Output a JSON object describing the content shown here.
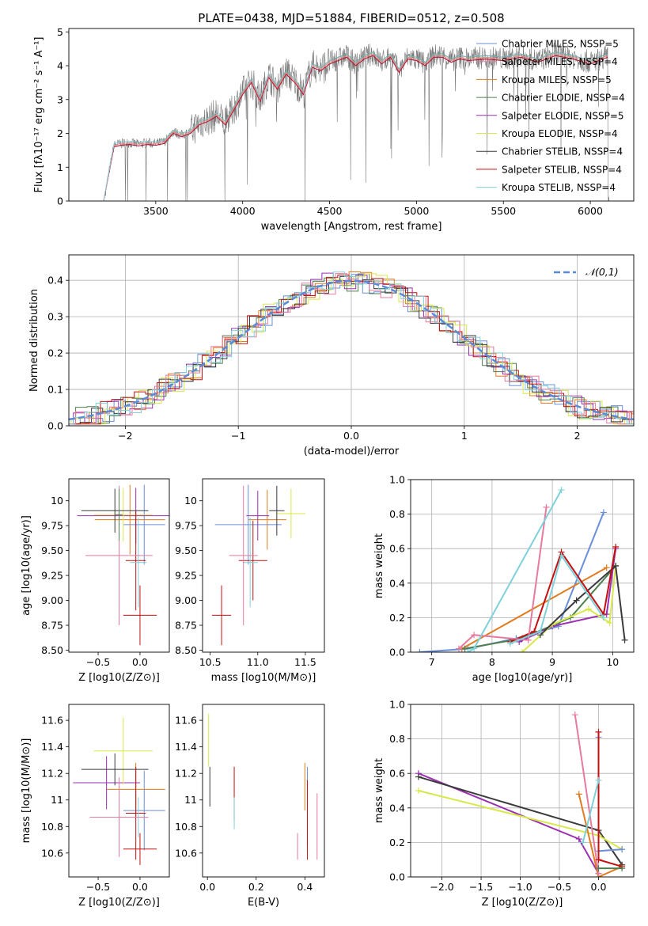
{
  "figure_title": "PLATE=0438, MJD=51884, FIBERID=0512, z=0.508",
  "series_colors": [
    "#6a8fd8",
    "#e07b1f",
    "#4f7f4f",
    "#9b30b0",
    "#d8e84a",
    "#3a3a3a",
    "#c41010",
    "#e8799f",
    "#7fd1d9"
  ],
  "chart_data": [
    {
      "id": "spectrum",
      "type": "line",
      "title": "PLATE=0438, MJD=51884, FIBERID=0512, z=0.508",
      "xlabel": "wavelength [Angstrom, rest frame]",
      "ylabel": "Flux [fλ10⁻¹⁷ erg cm⁻² s⁻¹ A⁻¹]",
      "xlim": [
        3000,
        6250
      ],
      "ylim": [
        0,
        5.1
      ],
      "xticks": [
        3500,
        4000,
        4500,
        5000,
        5500,
        6000
      ],
      "yticks": [
        0,
        1,
        2,
        3,
        4,
        5
      ],
      "grid": false,
      "legend_position": "upper right",
      "legend": [
        "Chabrier MILES, NSSP=5",
        "Salpeter MILES, NSSP=4",
        "Kroupa MILES, NSSP=5",
        "Chabrier ELODIE, NSSP=4",
        "Salpeter ELODIE, NSSP=5",
        "Kroupa ELODIE, NSSP=4",
        "Chabrier STELIB, NSSP=4",
        "Salpeter STELIB, NSSP=4",
        "Kroupa STELIB, NSSP=4"
      ],
      "legend_colors": [
        "#6a8fd8",
        "#e8799f",
        "#e07b1f",
        "#4f7f4f",
        "#9b30b0",
        "#d8e84a",
        "#3a3a3a",
        "#c41010",
        "#7fd1d9"
      ],
      "data_color": "#777777",
      "model_x": [
        3200,
        3260,
        3300,
        3350,
        3400,
        3450,
        3500,
        3550,
        3600,
        3650,
        3700,
        3750,
        3800,
        3850,
        3900,
        3950,
        4000,
        4050,
        4100,
        4150,
        4200,
        4250,
        4300,
        4350,
        4400,
        4450,
        4500,
        4550,
        4600,
        4650,
        4700,
        4750,
        4800,
        4850,
        4900,
        4950,
        5000,
        5050,
        5100,
        5150,
        5200,
        5250,
        5300,
        5400,
        5500,
        5600,
        5700,
        5800,
        5900,
        6000,
        6100
      ],
      "model_y": [
        0,
        1.65,
        1.7,
        1.72,
        1.68,
        1.72,
        1.7,
        1.75,
        2.05,
        1.95,
        2.05,
        2.3,
        2.4,
        2.55,
        2.3,
        2.75,
        3.2,
        3.55,
        3.0,
        3.7,
        3.35,
        3.8,
        3.55,
        3.2,
        4.0,
        3.9,
        4.1,
        4.2,
        4.3,
        4.05,
        4.25,
        4.35,
        4.1,
        4.3,
        3.85,
        4.25,
        4.2,
        4.05,
        4.3,
        4.3,
        4.15,
        4.25,
        4.2,
        4.25,
        4.2,
        4.3,
        4.15,
        4.35,
        4.25,
        4.1,
        4.3
      ]
    },
    {
      "id": "residuals",
      "type": "histogram",
      "xlabel": "(data-model)/error",
      "ylabel": "Normed distribution",
      "xlim": [
        -2.5,
        2.5
      ],
      "ylim": [
        0,
        0.47
      ],
      "xticks": [
        -2,
        -1,
        0,
        1,
        2
      ],
      "yticks": [
        0.0,
        0.1,
        0.2,
        0.3,
        0.4
      ],
      "grid": true,
      "legend": [
        "𝒩(0,1)"
      ],
      "legend_position": "upper right",
      "gauss_color": "#5b8bd8"
    },
    {
      "id": "age_vs_Z",
      "type": "errorbar",
      "xlabel": "Z [log10(Z/Z⊙)]",
      "ylabel": "age [log10(age/yr)]",
      "xlim": [
        -0.85,
        0.35
      ],
      "ylim": [
        8.48,
        10.22
      ],
      "xticks": [
        -0.5,
        0.0
      ],
      "yticks": [
        8.5,
        8.75,
        9.0,
        9.25,
        9.5,
        9.75,
        10.0
      ],
      "points": [
        {
          "c": 0,
          "x": 0.05,
          "y": 9.76,
          "xe": 0.25,
          "ye": 0.4
        },
        {
          "c": 1,
          "x": -0.12,
          "y": 9.81,
          "xe": 0.42,
          "ye": 0.35
        },
        {
          "c": 3,
          "x": -0.05,
          "y": 9.85,
          "xe": 0.7,
          "ye": 0.28
        },
        {
          "c": 4,
          "x": -0.2,
          "y": 9.86,
          "xe": 0.35,
          "ye": 0.27
        },
        {
          "c": 5,
          "x": -0.3,
          "y": 9.9,
          "xe": 0.4,
          "ye": 0.22
        },
        {
          "c": 6,
          "x": -0.05,
          "y": 9.4,
          "xe": 0.12,
          "ye": 0.5
        },
        {
          "c": 8,
          "x": -0.02,
          "y": 9.38,
          "xe": 0.1,
          "ye": 0.45
        },
        {
          "c": 7,
          "x": -0.25,
          "y": 9.45,
          "xe": 0.4,
          "ye": 0.7
        },
        {
          "c": 2,
          "x": -0.25,
          "y": 9.86,
          "xe": 0.04,
          "ye": 0.26
        },
        {
          "c": 6,
          "x": 0.0,
          "y": 8.85,
          "xe": 0.2,
          "ye": 0.3
        }
      ]
    },
    {
      "id": "age_vs_mass",
      "type": "errorbar",
      "xlabel": "mass [log10(M/M⊙)]",
      "ylabel": "",
      "xlim": [
        10.42,
        11.7
      ],
      "ylim": [
        8.48,
        10.22
      ],
      "xticks": [
        10.5,
        11.0,
        11.5
      ],
      "yticks": [
        8.5,
        8.75,
        9.0,
        9.25,
        9.5,
        9.75,
        10.0
      ],
      "points": [
        {
          "c": 0,
          "x": 10.9,
          "y": 9.76,
          "xe": 0.35,
          "ye": 0.4
        },
        {
          "c": 1,
          "x": 11.1,
          "y": 9.81,
          "xe": 0.2,
          "ye": 0.3
        },
        {
          "c": 3,
          "x": 11.0,
          "y": 9.85,
          "xe": 0.12,
          "ye": 0.25
        },
        {
          "c": 4,
          "x": 11.35,
          "y": 9.87,
          "xe": 0.15,
          "ye": 0.25
        },
        {
          "c": 5,
          "x": 11.2,
          "y": 9.9,
          "xe": 0.08,
          "ye": 0.25
        },
        {
          "c": 6,
          "x": 10.95,
          "y": 9.4,
          "xe": 0.15,
          "ye": 0.4
        },
        {
          "c": 8,
          "x": 10.92,
          "y": 9.38,
          "xe": 0.08,
          "ye": 0.45
        },
        {
          "c": 7,
          "x": 10.85,
          "y": 9.45,
          "xe": 0.15,
          "ye": 0.7
        },
        {
          "c": 6,
          "x": 10.62,
          "y": 8.85,
          "xe": 0.1,
          "ye": 0.3
        }
      ]
    },
    {
      "id": "weight_vs_age",
      "type": "line",
      "xlabel": "age [log10(age/yr)]",
      "ylabel": "mass weight",
      "xlim": [
        6.65,
        10.35
      ],
      "ylim": [
        0,
        1.0
      ],
      "xticks": [
        7,
        8,
        9,
        10
      ],
      "yticks": [
        0.0,
        0.2,
        0.4,
        0.6,
        0.8,
        1.0
      ],
      "grid": true,
      "series": [
        {
          "c": 0,
          "x": [
            6.8,
            7.6,
            8.4,
            9.1,
            9.85
          ],
          "y": [
            0.0,
            0.02,
            0.08,
            0.15,
            0.81
          ]
        },
        {
          "c": 1,
          "x": [
            7.5,
            9.9
          ],
          "y": [
            0.02,
            0.49
          ]
        },
        {
          "c": 2,
          "x": [
            7.55,
            8.5,
            9.3,
            10.05
          ],
          "y": [
            0.02,
            0.08,
            0.2,
            0.5
          ]
        },
        {
          "c": 3,
          "x": [
            8.45,
            9.0,
            9.9,
            10.05
          ],
          "y": [
            0.06,
            0.15,
            0.22,
            0.6
          ]
        },
        {
          "c": 4,
          "x": [
            8.5,
            9.0,
            9.6,
            9.95,
            10.05
          ],
          "y": [
            0.0,
            0.16,
            0.25,
            0.17,
            0.5
          ]
        },
        {
          "c": 5,
          "x": [
            8.8,
            9.4,
            10.05,
            10.2
          ],
          "y": [
            0.1,
            0.3,
            0.5,
            0.07
          ]
        },
        {
          "c": 6,
          "x": [
            8.3,
            8.7,
            9.15,
            9.85,
            10.05
          ],
          "y": [
            0.06,
            0.12,
            0.58,
            0.22,
            0.61
          ]
        },
        {
          "c": 7,
          "x": [
            7.45,
            7.7,
            8.6,
            8.9
          ],
          "y": [
            0.02,
            0.1,
            0.07,
            0.84
          ]
        },
        {
          "c": 8,
          "x": [
            7.6,
            7.7,
            9.15
          ],
          "y": [
            0.0,
            0.02,
            0.94
          ]
        },
        {
          "c": 8,
          "x": [
            8.3,
            8.8,
            9.15,
            9.85
          ],
          "y": [
            0.05,
            0.12,
            0.56,
            0.2
          ]
        }
      ]
    },
    {
      "id": "mass_vs_Z",
      "type": "errorbar",
      "xlabel": "Z [log10(Z/Z⊙)]",
      "ylabel": "mass [log10(M/M⊙)]",
      "xlim": [
        -0.85,
        0.35
      ],
      "ylim": [
        10.42,
        11.72
      ],
      "xticks": [
        -0.5,
        0.0
      ],
      "yticks": [
        10.6,
        10.8,
        11.0,
        11.2,
        11.4,
        11.6
      ],
      "points": [
        {
          "c": 0,
          "x": 0.05,
          "y": 10.92,
          "xe": 0.25,
          "ye": 0.3
        },
        {
          "c": 1,
          "x": -0.05,
          "y": 11.08,
          "xe": 0.35,
          "ye": 0.2
        },
        {
          "c": 3,
          "x": -0.4,
          "y": 11.13,
          "xe": 0.4,
          "ye": 0.2
        },
        {
          "c": 4,
          "x": -0.2,
          "y": 11.37,
          "xe": 0.35,
          "ye": 0.25
        },
        {
          "c": 5,
          "x": -0.3,
          "y": 11.23,
          "xe": 0.4,
          "ye": 0.12
        },
        {
          "c": 6,
          "x": -0.05,
          "y": 10.9,
          "xe": 0.12,
          "ye": 0.35
        },
        {
          "c": 8,
          "x": -0.02,
          "y": 10.87,
          "xe": 0.1,
          "ye": 0.15
        },
        {
          "c": 7,
          "x": -0.25,
          "y": 10.87,
          "xe": 0.35,
          "ye": 0.3
        },
        {
          "c": 6,
          "x": 0.0,
          "y": 10.63,
          "xe": 0.2,
          "ye": 0.12
        }
      ]
    },
    {
      "id": "mass_vs_EBV",
      "type": "errorbar",
      "xlabel": "E(B-V)",
      "ylabel": "",
      "xlim": [
        -0.02,
        0.48
      ],
      "ylim": [
        10.42,
        11.72
      ],
      "xticks": [
        0.0,
        0.2,
        0.4
      ],
      "yticks": [
        10.6,
        10.8,
        11.0,
        11.2,
        11.4,
        11.6
      ],
      "points": [
        {
          "c": 4,
          "x": 0.005,
          "y": 11.45,
          "xe": 0,
          "ye": 0.2
        },
        {
          "c": 5,
          "x": 0.01,
          "y": 11.1,
          "xe": 0,
          "ye": 0.15
        },
        {
          "c": 6,
          "x": 0.11,
          "y": 11.05,
          "xe": 0,
          "ye": 0.2
        },
        {
          "c": 8,
          "x": 0.11,
          "y": 10.9,
          "xe": 0,
          "ye": 0.12
        },
        {
          "c": 7,
          "x": 0.37,
          "y": 10.65,
          "xe": 0,
          "ye": 0.1
        },
        {
          "c": 1,
          "x": 0.4,
          "y": 11.1,
          "xe": 0,
          "ye": 0.18
        },
        {
          "c": 0,
          "x": 0.41,
          "y": 10.95,
          "xe": 0,
          "ye": 0.3
        },
        {
          "c": 6,
          "x": 0.41,
          "y": 10.85,
          "xe": 0,
          "ye": 0.3
        },
        {
          "c": 7,
          "x": 0.45,
          "y": 10.8,
          "xe": 0,
          "ye": 0.25
        }
      ]
    },
    {
      "id": "weight_vs_Z",
      "type": "line",
      "xlabel": "Z [log10(Z/Z⊙)]",
      "ylabel": "mass weight",
      "xlim": [
        -2.4,
        0.45
      ],
      "ylim": [
        0,
        1.0
      ],
      "xticks": [
        -2.0,
        -1.5,
        -1.0,
        -0.5,
        0.0
      ],
      "yticks": [
        0.0,
        0.2,
        0.4,
        0.6,
        0.8,
        1.0
      ],
      "grid": true,
      "series": [
        {
          "c": 3,
          "x": [
            -2.3,
            -0.25,
            0.0
          ],
          "y": [
            0.6,
            0.22,
            0.02
          ]
        },
        {
          "c": 5,
          "x": [
            -2.3,
            0.0,
            0.3
          ],
          "y": [
            0.58,
            0.27,
            0.07
          ]
        },
        {
          "c": 4,
          "x": [
            -2.3,
            0.0,
            0.3
          ],
          "y": [
            0.5,
            0.24,
            0.16
          ]
        },
        {
          "c": 1,
          "x": [
            -0.25,
            0.0,
            0.3
          ],
          "y": [
            0.48,
            0.0,
            0.06
          ]
        },
        {
          "c": 0,
          "x": [
            0.0,
            0.0,
            0.3
          ],
          "y": [
            0.81,
            0.15,
            0.16
          ]
        },
        {
          "c": 7,
          "x": [
            -0.3,
            0.0
          ],
          "y": [
            0.94,
            0.02
          ]
        },
        {
          "c": 6,
          "x": [
            0.0,
            0.0,
            0.3
          ],
          "y": [
            0.84,
            0.1,
            0.06
          ]
        },
        {
          "c": 8,
          "x": [
            -0.2,
            0.0
          ],
          "y": [
            0.2,
            0.56
          ]
        },
        {
          "c": 2,
          "x": [
            0.0,
            0.3
          ],
          "y": [
            0.05,
            0.05
          ]
        }
      ]
    }
  ]
}
